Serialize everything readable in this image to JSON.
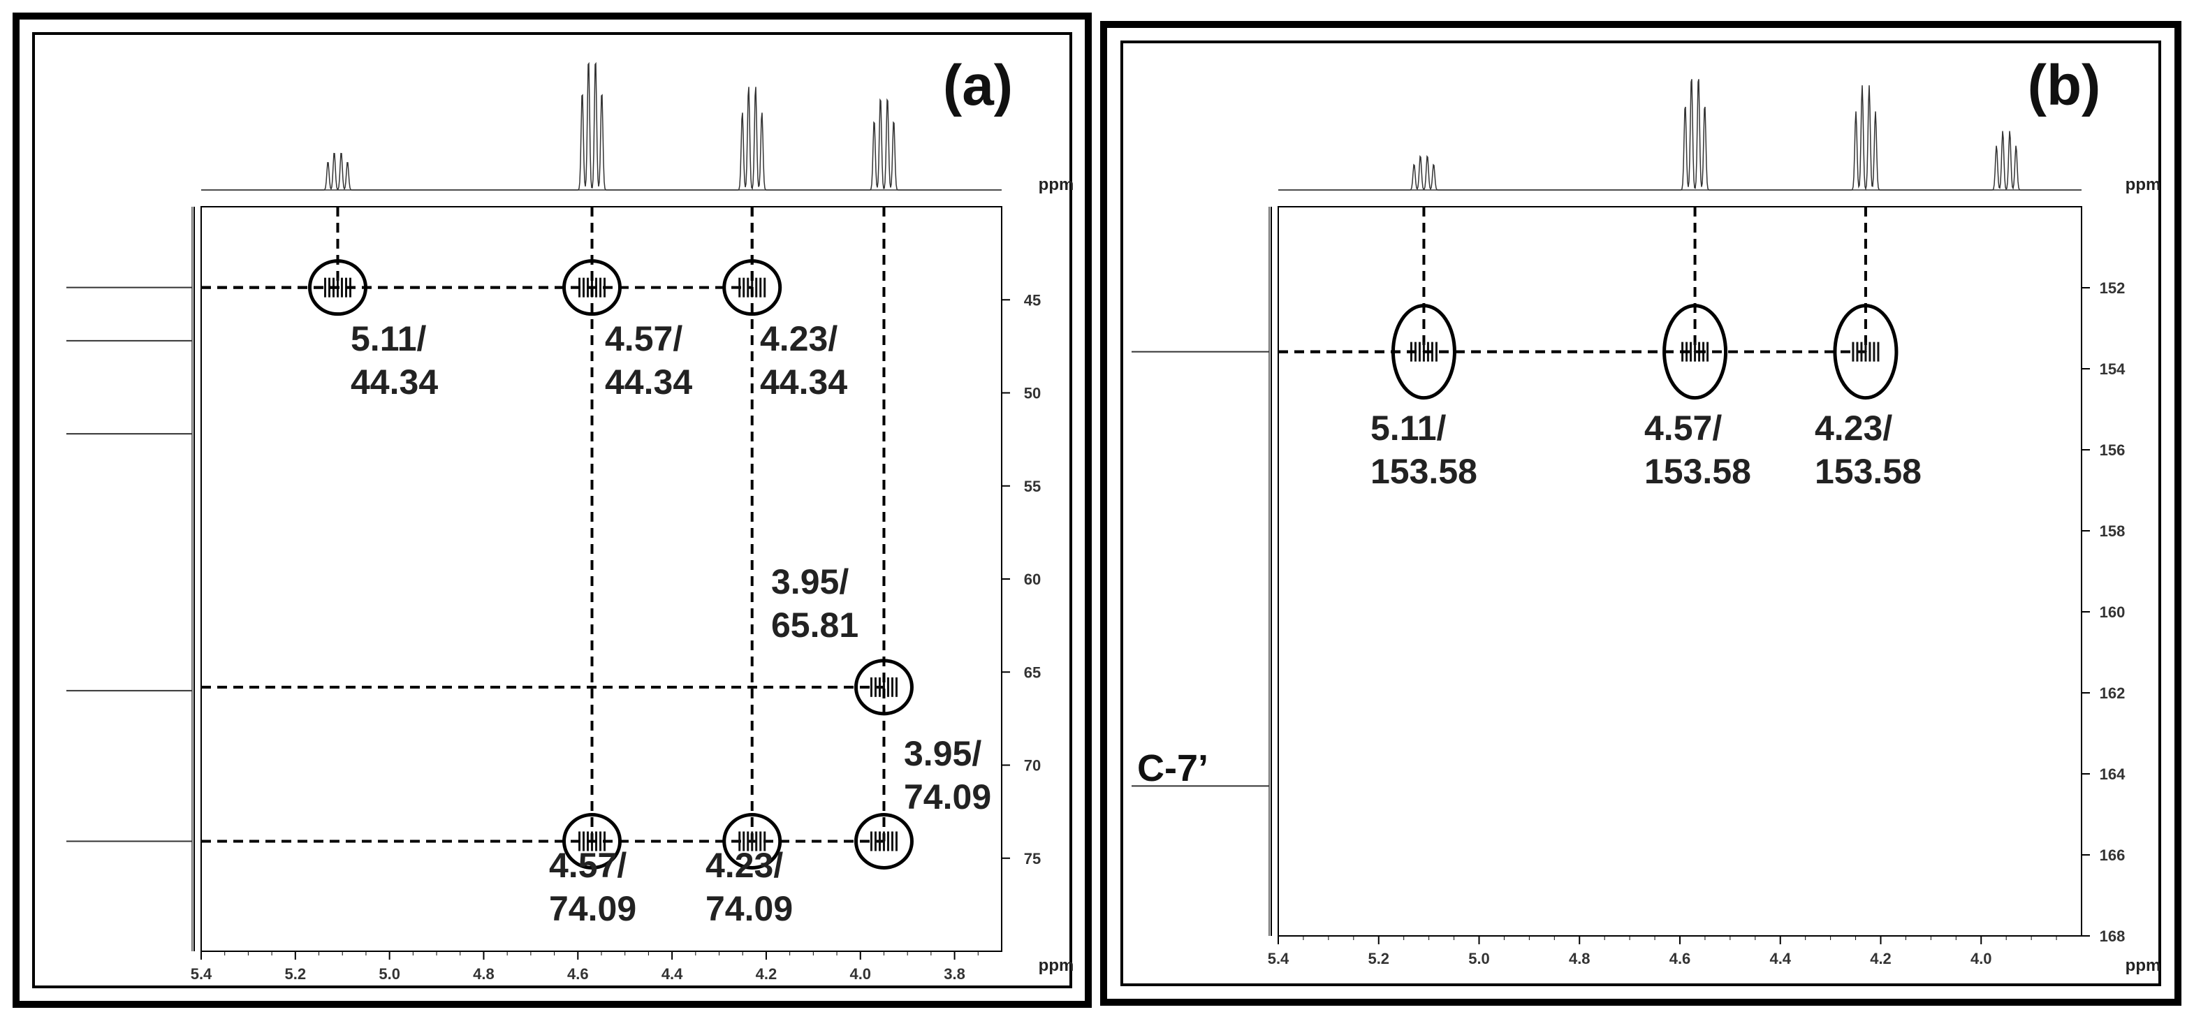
{
  "chart_data": [
    {
      "type": "scatter",
      "panel_label": "(a)",
      "x_unit": "ppm",
      "y_unit": "ppm",
      "xlim": [
        5.4,
        3.7
      ],
      "ylim": [
        40,
        80
      ],
      "x_ticks": [
        5.4,
        5.2,
        5.0,
        4.8,
        4.6,
        4.4,
        4.2,
        4.0,
        3.8
      ],
      "y_ticks": [
        45,
        50,
        55,
        60,
        65,
        70,
        75
      ],
      "x_tick_labels": [
        "5.4",
        "5.2",
        "5.0",
        "4.8",
        "4.6",
        "4.4",
        "4.2",
        "4.0",
        "3.8"
      ],
      "y_tick_labels": [
        "45",
        "50",
        "55",
        "60",
        "65",
        "70",
        "75"
      ],
      "top_projection_peaks": [
        5.11,
        4.57,
        4.23,
        3.95
      ],
      "left_projection_peaks": [
        44.34,
        47.2,
        52.2,
        66.0,
        74.09
      ],
      "series": [
        {
          "points": [
            {
              "x": 5.11,
              "y": 44.34,
              "label": "5.11/\n44.34"
            },
            {
              "x": 4.57,
              "y": 44.34,
              "label": "4.57/\n44.34"
            },
            {
              "x": 4.23,
              "y": 44.34,
              "label": "4.23/\n44.34"
            },
            {
              "x": 3.95,
              "y": 65.81,
              "label": "3.95/\n65.81"
            },
            {
              "x": 3.95,
              "y": 74.09,
              "label": "3.95/\n74.09"
            },
            {
              "x": 4.57,
              "y": 74.09,
              "label": "4.57/\n74.09"
            },
            {
              "x": 4.23,
              "y": 74.09,
              "label": "4.23/\n74.09"
            }
          ]
        }
      ],
      "annotations": [
        "5.11/",
        "44.34",
        "4.57/",
        "44.34",
        "4.23/",
        "44.34",
        "3.95/",
        "65.81",
        "3.95/",
        "74.09",
        "4.57/",
        "74.09",
        "4.23/",
        "74.09"
      ]
    },
    {
      "type": "scatter",
      "panel_label": "(b)",
      "x_unit": "ppm",
      "y_unit": "ppm",
      "xlim": [
        5.4,
        3.8
      ],
      "ylim": [
        150,
        168
      ],
      "x_ticks": [
        5.4,
        5.2,
        5.0,
        4.8,
        4.6,
        4.4,
        4.2,
        4.0
      ],
      "y_ticks": [
        152,
        154,
        156,
        158,
        160,
        162,
        164,
        166,
        168
      ],
      "x_tick_labels": [
        "5.4",
        "5.2",
        "5.0",
        "4.8",
        "4.6",
        "4.4",
        "4.2",
        "4.0"
      ],
      "y_tick_labels": [
        "152",
        "154",
        "156",
        "158",
        "160",
        "162",
        "164",
        "166",
        "168"
      ],
      "top_projection_peaks": [
        5.11,
        4.57,
        4.23,
        3.95
      ],
      "left_projection_peaks": [
        153.58,
        164.3
      ],
      "left_annotation": "C-7’",
      "series": [
        {
          "points": [
            {
              "x": 5.11,
              "y": 153.58,
              "label": "5.11/\n153.58"
            },
            {
              "x": 4.57,
              "y": 153.58,
              "label": "4.57/\n153.58"
            },
            {
              "x": 4.23,
              "y": 153.58,
              "label": "4.23/\n153.58"
            }
          ]
        }
      ],
      "annotations": [
        "5.11/",
        "153.58",
        "4.57/",
        "153.58",
        "4.23/",
        "153.58"
      ]
    }
  ]
}
